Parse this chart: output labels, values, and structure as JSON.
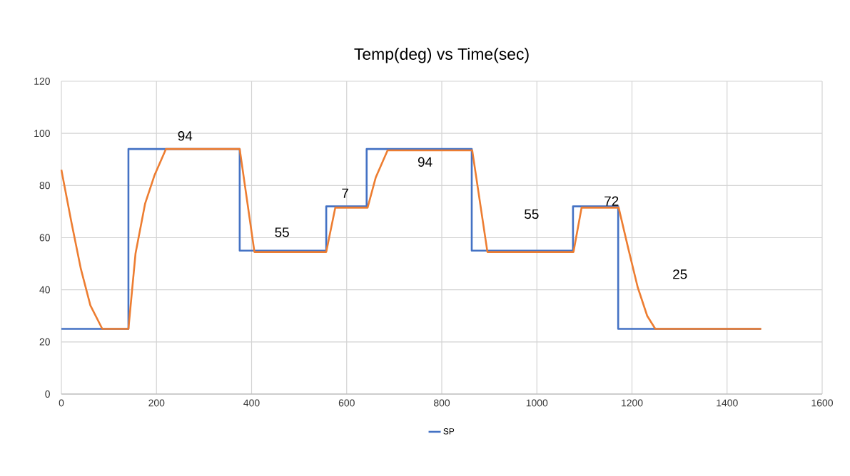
{
  "chart_data": {
    "type": "line",
    "title": "Temp(deg)  vs Time(sec)",
    "xlim": [
      0,
      1600
    ],
    "xticks": [
      0,
      200,
      400,
      600,
      800,
      1000,
      1200,
      1400,
      1600
    ],
    "ylim": [
      0,
      120
    ],
    "yticks": [
      0,
      20,
      40,
      60,
      80,
      100,
      120
    ],
    "grid": true,
    "legend": "bottom",
    "marker": "none",
    "line_style": "solid",
    "series": [
      {
        "name": "SP",
        "type": "step",
        "color": "#4472c4",
        "x": [
          0,
          141,
          375,
          557,
          642,
          863,
          1076,
          1171,
          1471
        ],
        "values": [
          25,
          94,
          55,
          72,
          94,
          55,
          72,
          25,
          25
        ]
      },
      {
        "color": "#ed7d31",
        "x": [
          0,
          21,
          41,
          61,
          86,
          141,
          156,
          176,
          196,
          220,
          375,
          406,
          557,
          576,
          644,
          661,
          686,
          864,
          896,
          1077,
          1094,
          1172,
          1192,
          1212,
          1232,
          1249,
          1472
        ],
        "values": [
          86,
          66,
          48,
          34,
          25,
          25,
          54,
          73,
          84,
          94,
          94,
          54.5,
          54.5,
          71.5,
          71.5,
          83,
          93.5,
          93.5,
          54.5,
          54.5,
          71.5,
          71.5,
          56,
          41,
          30,
          25,
          25
        ]
      }
    ],
    "annotations": [
      "94",
      "55",
      "7",
      "94",
      "55",
      "72",
      "25"
    ]
  }
}
